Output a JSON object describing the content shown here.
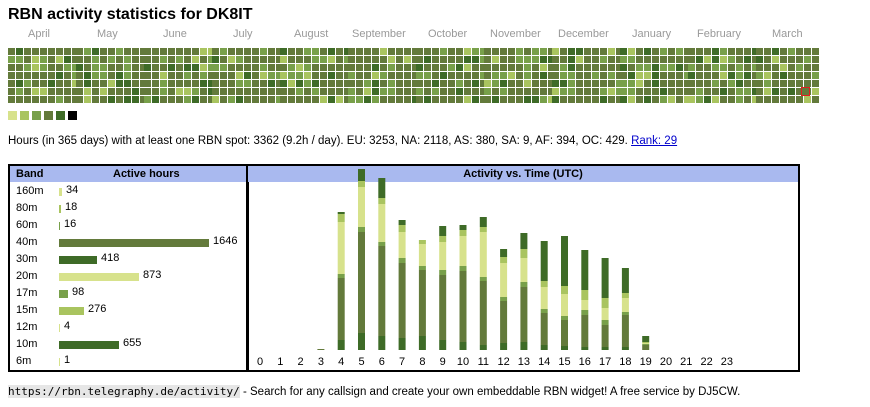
{
  "header": {
    "title": "RBN activity statistics for DK8IT"
  },
  "months": [
    "April",
    "May",
    "June",
    "July",
    "August",
    "September",
    "October",
    "November",
    "December",
    "January",
    "February",
    "March"
  ],
  "colors": {
    "level1": "#d7e28c",
    "level2": "#a9c45f",
    "level3": "#78a04a",
    "level4": "#637a3b",
    "level5": "#3e6b27",
    "level6": "#000000",
    "empty": "#e8e8e8",
    "today_border": "#e02020",
    "header_bg": "#a9b9ef"
  },
  "legend_levels": [
    "level1",
    "level2",
    "level3",
    "level4",
    "level5",
    "level6"
  ],
  "summary": {
    "text": "Hours (in 365 days) with at least one RBN spot: 3362 (9.2h / day). EU: 3253, NA: 2118, AS: 380, SA: 9, AF: 394, OC: 429.",
    "rank_label": "Rank: 29"
  },
  "band_table": {
    "header_band": "Band",
    "header_hours": "Active hours",
    "rows": [
      {
        "band": "160m",
        "hours": 34,
        "label": "34",
        "color": "#d7e28c"
      },
      {
        "band": "80m",
        "hours": 18,
        "label": "18",
        "color": "#a9c45f"
      },
      {
        "band": "60m",
        "hours": 16,
        "label": "16",
        "color": "#78a04a"
      },
      {
        "band": "40m",
        "hours": 1646,
        "label": "1646",
        "color": "#637a3b"
      },
      {
        "band": "30m",
        "hours": 418,
        "label": "418",
        "color": "#3e6b27"
      },
      {
        "band": "20m",
        "hours": 873,
        "label": "873",
        "color": "#d7e28c"
      },
      {
        "band": "17m",
        "hours": 98,
        "label": "98",
        "color": "#78a04a"
      },
      {
        "band": "15m",
        "hours": 276,
        "label": "276",
        "color": "#a9c45f"
      },
      {
        "band": "12m",
        "hours": 4,
        "label": "4",
        "color": "#d7e28c"
      },
      {
        "band": "10m",
        "hours": 655,
        "label": "655",
        "color": "#3e6b27"
      },
      {
        "band": "6m",
        "hours": 1,
        "label": "1",
        "color": "#d7e28c"
      }
    ]
  },
  "chart_data": {
    "type": "bar",
    "title": "Activity vs. Time (UTC)",
    "categories": [
      "0",
      "1",
      "2",
      "3",
      "4",
      "5",
      "6",
      "7",
      "8",
      "9",
      "10",
      "11",
      "12",
      "13",
      "14",
      "15",
      "16",
      "17",
      "18",
      "19",
      "20",
      "21",
      "22",
      "23"
    ],
    "series": [
      {
        "values": [
          0,
          0,
          0,
          0,
          10,
          17,
          14,
          12,
          14,
          10,
          8,
          5,
          7,
          8,
          5,
          4,
          3,
          3,
          3,
          0,
          0,
          0,
          0,
          0
        ],
        "color": "#3e6b27"
      },
      {
        "values": [
          0,
          0,
          0,
          0,
          8,
          6,
          5,
          5,
          4,
          5,
          7,
          6,
          6,
          5,
          4,
          4,
          5,
          4,
          5,
          1,
          0,
          0,
          0,
          0
        ],
        "color": "#637a3b"
      },
      {
        "values": [
          0,
          0,
          0,
          1,
          54,
          95,
          85,
          70,
          62,
          60,
          64,
          58,
          36,
          50,
          28,
          22,
          27,
          18,
          27,
          4,
          0,
          0,
          0,
          0
        ],
        "color": "#637a3b"
      },
      {
        "values": [
          0,
          0,
          0,
          0,
          4,
          5,
          4,
          5,
          4,
          5,
          5,
          4,
          4,
          5,
          4,
          4,
          5,
          5,
          3,
          1,
          0,
          0,
          0,
          0
        ],
        "color": "#78a04a"
      },
      {
        "values": [
          0,
          0,
          0,
          0,
          52,
          40,
          38,
          26,
          22,
          28,
          30,
          45,
          34,
          24,
          22,
          22,
          10,
          12,
          14,
          1,
          0,
          0,
          0,
          0
        ],
        "color": "#d7e28c"
      },
      {
        "values": [
          0,
          0,
          0,
          0,
          8,
          6,
          6,
          7,
          4,
          6,
          6,
          5,
          6,
          9,
          6,
          8,
          10,
          10,
          5,
          1,
          0,
          0,
          0,
          0
        ],
        "color": "#a9c45f"
      },
      {
        "values": [
          0,
          0,
          0,
          0,
          2,
          12,
          20,
          5,
          0,
          10,
          5,
          10,
          8,
          16,
          40,
          50,
          40,
          40,
          25,
          6,
          0,
          0,
          0,
          0
        ],
        "color": "#3e6b27"
      }
    ],
    "ylim": [
      0,
      160
    ]
  },
  "footer": {
    "url": "https://rbn.telegraphy.de/activity/",
    "text": " - Search for any callsign and create your own embeddable RBN widget! A free service by DJ5CW."
  }
}
